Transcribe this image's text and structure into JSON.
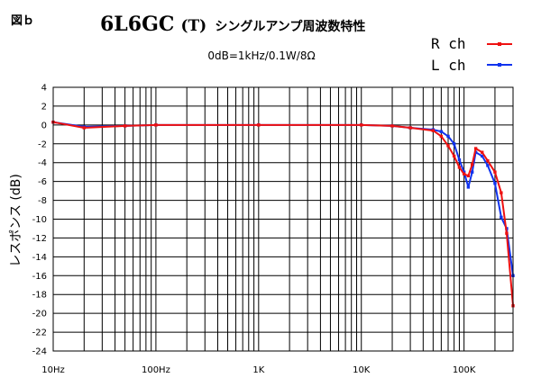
{
  "figure_label": "図ｂ",
  "title": {
    "model": "6L6GC",
    "tube_mark": "(T)",
    "suffix": "シングルアンプ周波数特性"
  },
  "condition": "0dB=1kHz/0.1W/8Ω",
  "colors": {
    "r": "#ee1111",
    "l": "#1133ee",
    "grid": "#000000"
  },
  "chart_data": {
    "type": "line",
    "title": "6L6GC(T)シングルアンプ周波数特性",
    "subtitle": "0dB=1kHz/0.1W/8Ω",
    "xlabel": "",
    "ylabel": "レスポンス (dB)",
    "x_scale": "log",
    "xlim": [
      10,
      300000
    ],
    "ylim": [
      -24,
      4
    ],
    "y_ticks": [
      4,
      2,
      0,
      -2,
      -4,
      -6,
      -8,
      -10,
      -12,
      -14,
      -16,
      -18,
      -20,
      -22,
      -24
    ],
    "x_ticks": [
      {
        "value": 10,
        "label": "10Hz"
      },
      {
        "value": 100,
        "label": "100Hz"
      },
      {
        "value": 1000,
        "label": "1K"
      },
      {
        "value": 10000,
        "label": "10K"
      },
      {
        "value": 100000,
        "label": "100K"
      }
    ],
    "grid": true,
    "legend_position": "top-right",
    "series": [
      {
        "name": "R ch",
        "color": "#ee1111",
        "points": [
          [
            10,
            0.3
          ],
          [
            20,
            -0.3
          ],
          [
            50,
            -0.1
          ],
          [
            100,
            0
          ],
          [
            1000,
            0
          ],
          [
            10000,
            0
          ],
          [
            20000,
            -0.1
          ],
          [
            30000,
            -0.3
          ],
          [
            50000,
            -0.6
          ],
          [
            60000,
            -1.2
          ],
          [
            70000,
            -2.2
          ],
          [
            80000,
            -3.3
          ],
          [
            90000,
            -4.5
          ],
          [
            100000,
            -5.2
          ],
          [
            110000,
            -5.4
          ],
          [
            120000,
            -4.2
          ],
          [
            130000,
            -2.5
          ],
          [
            150000,
            -2.9
          ],
          [
            170000,
            -3.8
          ],
          [
            200000,
            -5.0
          ],
          [
            230000,
            -7.2
          ],
          [
            260000,
            -11.5
          ],
          [
            300000,
            -19.2
          ]
        ]
      },
      {
        "name": "L ch",
        "color": "#1133ee",
        "points": [
          [
            10,
            0.3
          ],
          [
            20,
            -0.2
          ],
          [
            50,
            -0.1
          ],
          [
            100,
            0
          ],
          [
            1000,
            0
          ],
          [
            10000,
            0
          ],
          [
            20000,
            -0.1
          ],
          [
            30000,
            -0.3
          ],
          [
            50000,
            -0.5
          ],
          [
            60000,
            -0.7
          ],
          [
            70000,
            -1.2
          ],
          [
            80000,
            -2.0
          ],
          [
            90000,
            -3.7
          ],
          [
            100000,
            -5.0
          ],
          [
            110000,
            -6.6
          ],
          [
            120000,
            -5.0
          ],
          [
            130000,
            -2.9
          ],
          [
            150000,
            -3.3
          ],
          [
            170000,
            -4.3
          ],
          [
            200000,
            -6.2
          ],
          [
            230000,
            -9.8
          ],
          [
            260000,
            -11.0
          ],
          [
            300000,
            -16.0
          ]
        ]
      }
    ]
  }
}
